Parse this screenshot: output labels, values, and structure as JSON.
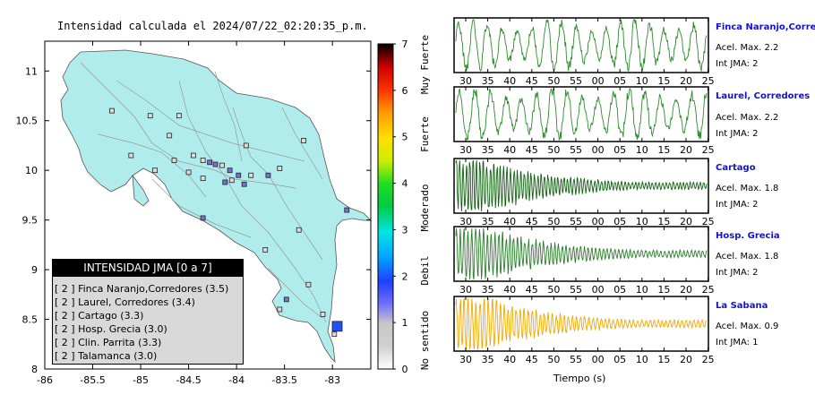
{
  "map": {
    "title": "Intensidad calculada el 2024/07/22_02:20:35_p.m.",
    "x_ticks": [
      "-86",
      "-85.5",
      "-85",
      "-84.5",
      "-84",
      "-83.5",
      "-83"
    ],
    "y_ticks": [
      "11",
      "10.5",
      "10",
      "9.5",
      "9",
      "8.5",
      "8"
    ],
    "land_color": "#b0ecec",
    "water_color": "#ffffff"
  },
  "colorbar": {
    "ticks": [
      "0",
      "1",
      "2",
      "3",
      "4",
      "5",
      "6",
      "7"
    ],
    "category_labels": [
      "No sentido",
      "Debil",
      "Moderado",
      "Fuerte",
      "Muy Fuerte"
    ]
  },
  "legend": {
    "title": "INTENSIDAD JMA [0 a 7]",
    "items": [
      "[ 2 ] Finca Naranjo,Corredores (3.5)",
      "[ 2 ] Laurel, Corredores (3.4)",
      "[ 2 ] Cartago (3.3)",
      "[ 2 ] Hosp. Grecia (3.0)",
      "[ 2 ] Clin. Parrita (3.3)",
      "[ 2 ] Talamanca (3.0)"
    ]
  },
  "stations": [
    {
      "name": "Finca Naranjo,Corredor",
      "accel": "Acel. Max. 2.2",
      "int": "Int JMA: 2",
      "color": "#2e8b2e"
    },
    {
      "name": "Laurel, Corredores",
      "accel": "Acel. Max. 2.2",
      "int": "Int JMA: 2",
      "color": "#2e8b2e"
    },
    {
      "name": "Cartago",
      "accel": "Acel. Max. 1.8",
      "int": "Int JMA: 2",
      "color": "#136113"
    },
    {
      "name": "Hosp. Grecia",
      "accel": "Acel. Max. 1.8",
      "int": "Int JMA: 2",
      "color": "#2e7d2e"
    },
    {
      "name": "La Sabana",
      "accel": "Acel. Max. 0.9",
      "int": "Int JMA: 1",
      "color": "#f2a800"
    }
  ],
  "time_axis": {
    "label": "Tiempo (s)",
    "ticks_a": [
      "30",
      "35",
      "40",
      "45",
      "50",
      "55",
      "00",
      "05",
      "10",
      "15",
      "20",
      "25"
    ],
    "ticks_b": [
      "30",
      "35",
      "40",
      "45",
      "50",
      "55",
      "00",
      "05",
      "10",
      "15",
      "20",
      "25"
    ],
    "ticks_c": [
      "30",
      "35",
      "40",
      "45",
      "50",
      "55",
      "00",
      "05",
      "10",
      "15",
      "20",
      "25"
    ],
    "ticks_d": [
      "30",
      "35",
      "40",
      "45",
      "50",
      "55",
      "00",
      "05",
      "10",
      "15",
      "20",
      "25"
    ],
    "ticks_e": [
      "30",
      "35",
      "40",
      "45",
      "50",
      "55",
      "00",
      "05",
      "10",
      "15",
      "20",
      "25"
    ]
  },
  "chart_data": [
    {
      "type": "scatter",
      "title": "Intensidad calculada el 2024/07/22_02:20:35_p.m.",
      "xlabel": "",
      "ylabel": "",
      "xlim": [
        -86,
        -82.6
      ],
      "ylim": [
        8,
        11.3
      ],
      "points": [
        {
          "lon": -84.28,
          "lat": 10.08,
          "intensity": 2
        },
        {
          "lon": -84.22,
          "lat": 10.06,
          "intensity": 2
        },
        {
          "lon": -84.07,
          "lat": 10.0,
          "intensity": 2
        },
        {
          "lon": -83.92,
          "lat": 9.86,
          "intensity": 2
        },
        {
          "lon": -84.12,
          "lat": 9.88,
          "intensity": 2
        },
        {
          "lon": -83.98,
          "lat": 9.95,
          "intensity": 2
        },
        {
          "lon": -83.67,
          "lat": 9.95,
          "intensity": 2
        },
        {
          "lon": -82.85,
          "lat": 9.6,
          "intensity": 2
        },
        {
          "lon": -84.35,
          "lat": 9.52,
          "intensity": 2
        },
        {
          "lon": -83.48,
          "lat": 8.7,
          "intensity": 2
        },
        {
          "lon": -82.95,
          "lat": 8.43,
          "intensity": 3
        },
        {
          "lon": -84.35,
          "lat": 10.1,
          "intensity": 1
        },
        {
          "lon": -84.6,
          "lat": 10.55,
          "intensity": 1
        },
        {
          "lon": -84.85,
          "lat": 10.0,
          "intensity": 1
        },
        {
          "lon": -85.3,
          "lat": 10.6,
          "intensity": 1
        },
        {
          "lon": -84.5,
          "lat": 9.98,
          "intensity": 1
        },
        {
          "lon": -84.05,
          "lat": 9.9,
          "intensity": 1
        },
        {
          "lon": -83.85,
          "lat": 9.95,
          "intensity": 1
        },
        {
          "lon": -83.55,
          "lat": 10.02,
          "intensity": 1
        },
        {
          "lon": -84.65,
          "lat": 10.1,
          "intensity": 1
        },
        {
          "lon": -85.1,
          "lat": 10.15,
          "intensity": 1
        },
        {
          "lon": -84.15,
          "lat": 10.05,
          "intensity": 1
        },
        {
          "lon": -83.35,
          "lat": 9.4,
          "intensity": 1
        },
        {
          "lon": -83.7,
          "lat": 9.2,
          "intensity": 1
        },
        {
          "lon": -83.1,
          "lat": 8.55,
          "intensity": 1
        },
        {
          "lon": -82.98,
          "lat": 8.35,
          "intensity": 1
        },
        {
          "lon": -83.55,
          "lat": 8.6,
          "intensity": 1
        },
        {
          "lon": -83.25,
          "lat": 8.85,
          "intensity": 1
        },
        {
          "lon": -84.35,
          "lat": 9.92,
          "intensity": 1
        },
        {
          "lon": -84.45,
          "lat": 10.15,
          "intensity": 1
        },
        {
          "lon": -84.7,
          "lat": 10.35,
          "intensity": 1
        },
        {
          "lon": -83.9,
          "lat": 10.25,
          "intensity": 1
        },
        {
          "lon": -84.9,
          "lat": 10.55,
          "intensity": 1
        },
        {
          "lon": -83.3,
          "lat": 10.3,
          "intensity": 1
        }
      ]
    },
    {
      "type": "line",
      "title": "Finca Naranjo,Corredor",
      "xlabel": "",
      "ylabel": "",
      "x_ticks": [
        "30",
        "35",
        "40",
        "45",
        "50",
        "55",
        "00",
        "05",
        "10",
        "15",
        "20",
        "25"
      ],
      "series": [
        {
          "name": "Finca Naranjo,Corredor",
          "seed": 1,
          "n": 380,
          "envelope": "sustained",
          "freq": 0.28
        }
      ]
    },
    {
      "type": "line",
      "title": "Laurel, Corredores",
      "xlabel": "",
      "ylabel": "",
      "x_ticks": [
        "30",
        "35",
        "40",
        "45",
        "50",
        "55",
        "00",
        "05",
        "10",
        "15",
        "20",
        "25"
      ],
      "series": [
        {
          "name": "Laurel, Corredores",
          "seed": 2,
          "n": 380,
          "envelope": "sustained",
          "freq": 0.27
        }
      ]
    },
    {
      "type": "line",
      "title": "Cartago",
      "xlabel": "",
      "ylabel": "",
      "x_ticks": [
        "30",
        "35",
        "40",
        "45",
        "50",
        "55",
        "00",
        "05",
        "10",
        "15",
        "20",
        "25"
      ],
      "series": [
        {
          "name": "Cartago",
          "seed": 3,
          "n": 520,
          "envelope": "decay",
          "freq": 0.9
        }
      ]
    },
    {
      "type": "line",
      "title": "Hosp. Grecia",
      "xlabel": "",
      "ylabel": "",
      "x_ticks": [
        "30",
        "35",
        "40",
        "45",
        "50",
        "55",
        "00",
        "05",
        "10",
        "15",
        "20",
        "25"
      ],
      "series": [
        {
          "name": "Hosp. Grecia",
          "seed": 4,
          "n": 520,
          "envelope": "decay",
          "freq": 0.8
        }
      ]
    },
    {
      "type": "line",
      "title": "La Sabana",
      "xlabel": "Tiempo (s)",
      "ylabel": "",
      "x_ticks": [
        "30",
        "35",
        "40",
        "45",
        "50",
        "55",
        "00",
        "05",
        "10",
        "15",
        "20",
        "25"
      ],
      "series": [
        {
          "name": "La Sabana",
          "seed": 5,
          "n": 520,
          "envelope": "decay",
          "freq": 0.75
        }
      ]
    }
  ]
}
